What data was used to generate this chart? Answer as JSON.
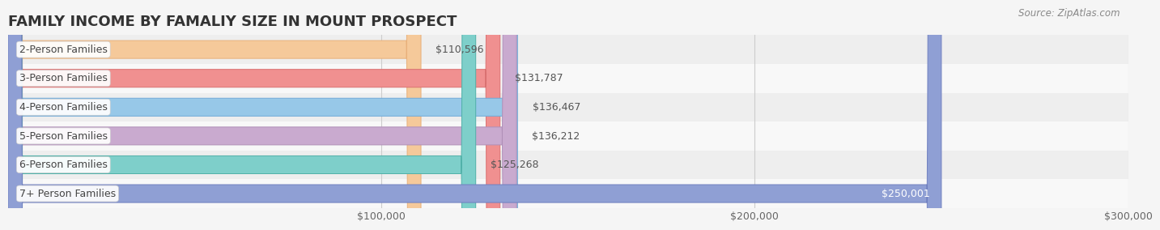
{
  "title": "FAMILY INCOME BY FAMALIY SIZE IN MOUNT PROSPECT",
  "source": "Source: ZipAtlas.com",
  "categories": [
    "2-Person Families",
    "3-Person Families",
    "4-Person Families",
    "5-Person Families",
    "6-Person Families",
    "7+ Person Families"
  ],
  "values": [
    110596,
    131787,
    136467,
    136212,
    125268,
    250001
  ],
  "bar_colors": [
    "#f5c99a",
    "#f09090",
    "#97c8e8",
    "#c9aacf",
    "#7ecfca",
    "#8f9fd4"
  ],
  "bar_edge_colors": [
    "#e8b07a",
    "#d97070",
    "#70aad8",
    "#b090b8",
    "#50b0a8",
    "#7080c0"
  ],
  "xlim": [
    0,
    300000
  ],
  "xticks": [
    100000,
    200000,
    300000
  ],
  "xtick_labels": [
    "$100,000",
    "$200,000",
    "$300,000"
  ],
  "bg_color": "#f5f5f5",
  "row_bg_even": "#eeeeee",
  "row_bg_odd": "#f8f8f8",
  "title_fontsize": 13,
  "bar_height": 0.62,
  "label_fontsize": 9,
  "value_fontsize": 9,
  "value_label_last_color": "#ffffff",
  "value_label_color": "#555555"
}
